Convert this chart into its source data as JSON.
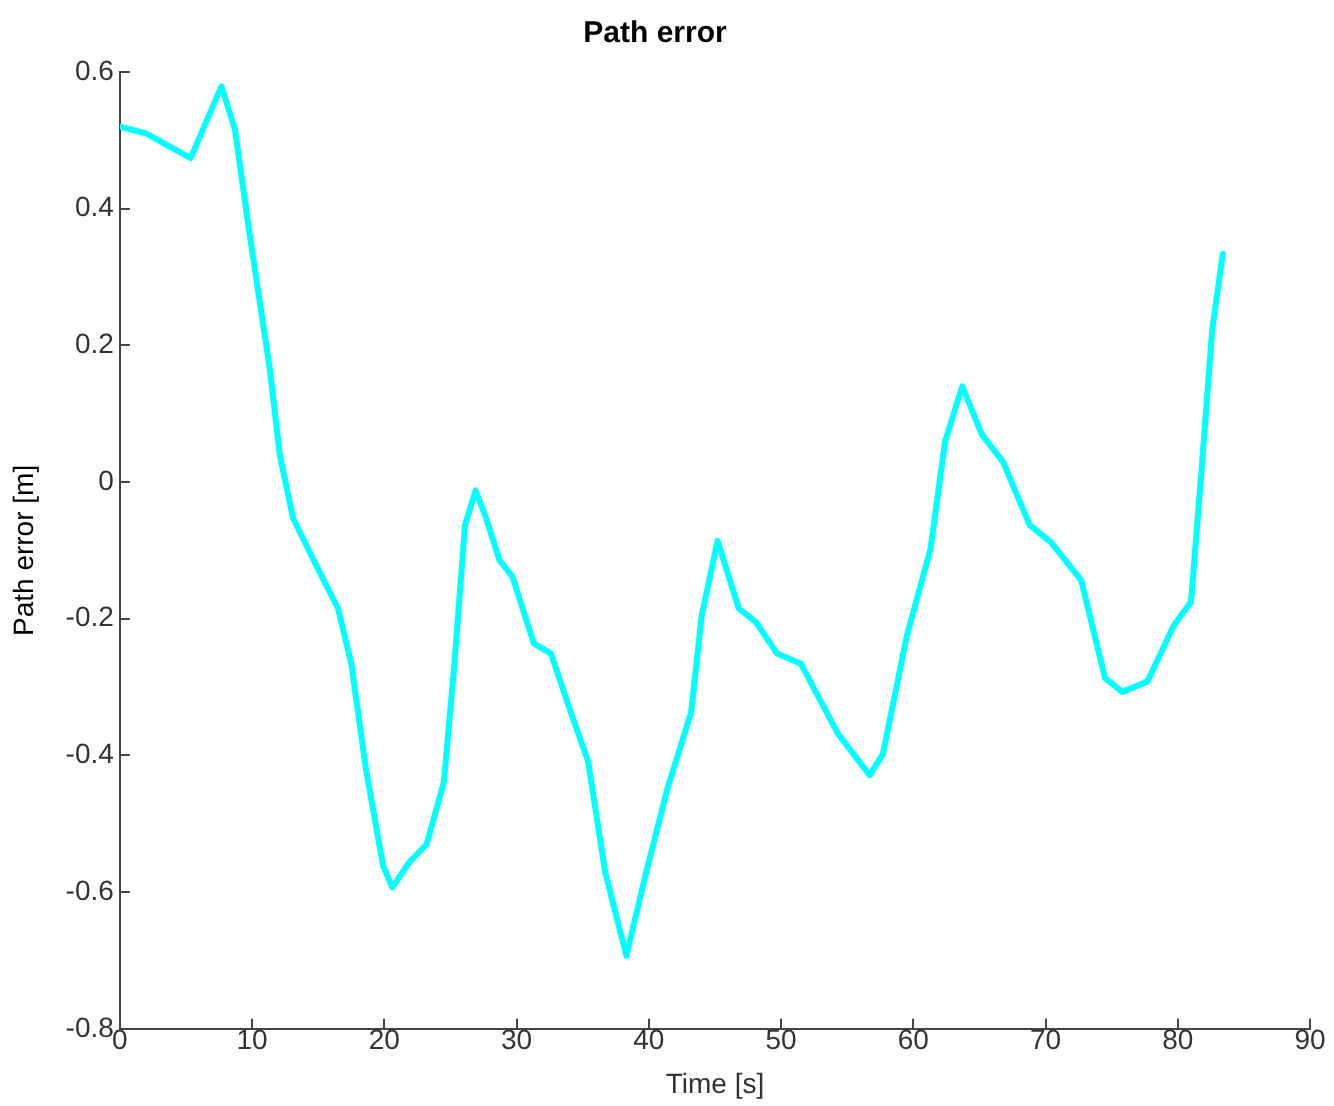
{
  "chart_data": {
    "type": "line",
    "title": "Path error",
    "xlabel": "Time [s]",
    "ylabel": "Path error [m]",
    "x": [
      0,
      2.0,
      5.35,
      7.68,
      8.7,
      9.8,
      11.3,
      12.1,
      13.1,
      14.9,
      16.5,
      17.5,
      18.6,
      19.9,
      20.6,
      21.9,
      23.2,
      24.5,
      25.3,
      26.1,
      26.9,
      27.7,
      28.7,
      29.7,
      31.3,
      32.6,
      34.1,
      35.4,
      36.7,
      38.3,
      39.8,
      41.4,
      43.2,
      44.0,
      45.2,
      46.8,
      48.1,
      49.7,
      51.5,
      54.3,
      56.7,
      57.7,
      59.5,
      61.3,
      62.4,
      63.7,
      65.2,
      66.8,
      68.8,
      70.4,
      72.7,
      74.5,
      75.8,
      77.7,
      79.7,
      81.0,
      81.8,
      82.6,
      83.4
    ],
    "series": [
      {
        "color": "#00ffff",
        "values": [
          0.52,
          0.51,
          0.474,
          0.579,
          0.516,
          0.364,
          0.171,
          0.039,
          -0.053,
          -0.124,
          -0.185,
          -0.266,
          -0.419,
          -0.561,
          -0.593,
          -0.556,
          -0.53,
          -0.439,
          -0.266,
          -0.063,
          -0.012,
          -0.053,
          -0.114,
          -0.139,
          -0.236,
          -0.251,
          -0.337,
          -0.408,
          -0.571,
          -0.693,
          -0.571,
          -0.449,
          -0.337,
          -0.195,
          -0.086,
          -0.185,
          -0.205,
          -0.251,
          -0.266,
          -0.368,
          -0.429,
          -0.398,
          -0.226,
          -0.098,
          0.059,
          0.14,
          0.069,
          0.029,
          -0.063,
          -0.088,
          -0.144,
          -0.287,
          -0.307,
          -0.292,
          -0.21,
          -0.175,
          0.018,
          0.222,
          0.334
        ]
      }
    ],
    "xlim": [
      0,
      90
    ],
    "xticks": [
      0,
      10,
      20,
      30,
      40,
      50,
      60,
      70,
      80,
      90
    ],
    "ylim": [
      -0.8,
      0.6
    ],
    "yticks": [
      -0.8,
      -0.6,
      -0.4,
      -0.2,
      0,
      0.2,
      0.4,
      0.6
    ],
    "grid": false,
    "legend": false,
    "marker": "none",
    "line_style": "solid"
  }
}
